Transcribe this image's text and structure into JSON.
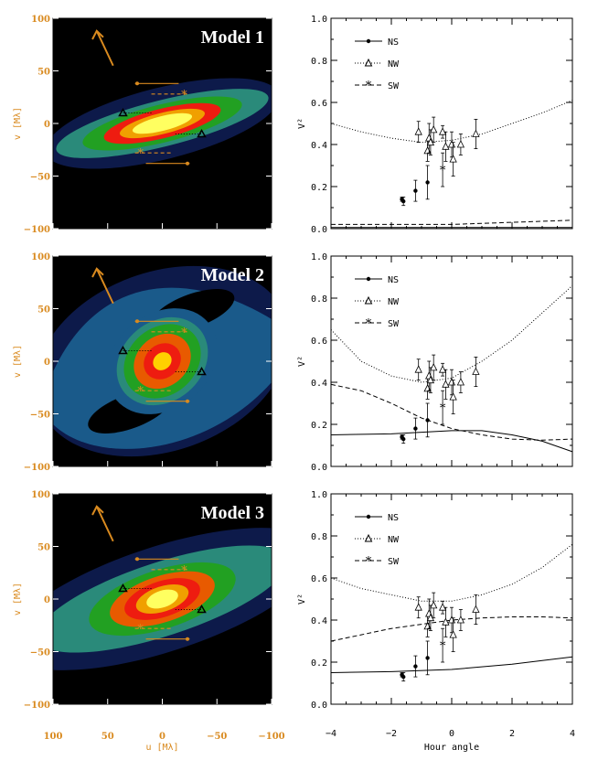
{
  "colors": {
    "uv_axis": "#d98a1f",
    "black": "#000000",
    "contour": [
      "#000000",
      "#0d1a4a",
      "#1a5a8a",
      "#2a8a7a",
      "#22a022",
      "#e85a00",
      "#ee1c10",
      "#f0a000",
      "#ffd000",
      "#ffff60"
    ]
  },
  "uv_axes": {
    "xlabel": "u [Mλ]",
    "ylabel": "v [Mλ]",
    "xticks": [
      "100",
      "50",
      "0",
      "−50",
      "−100"
    ],
    "yticks": [
      "100",
      "50",
      "0",
      "−50",
      "−100"
    ]
  },
  "v2_axes": {
    "xlabel": "Hour angle",
    "ylabel": "V²",
    "xticks": [
      "−4",
      "−2",
      "0",
      "2",
      "4"
    ],
    "yticks": [
      "0.0",
      "0.2",
      "0.4",
      "0.6",
      "0.8",
      "1.0"
    ]
  },
  "legend": [
    {
      "name": "NS",
      "marker": "dot",
      "line": "solid"
    },
    {
      "name": "NW",
      "marker": "triangle",
      "line": "dotted"
    },
    {
      "name": "SW",
      "marker": "asterisk",
      "line": "dashed"
    }
  ],
  "chart_data": [
    {
      "type": "heatmap",
      "title": "Model 1",
      "ellipses": [
        [
          0,
          0,
          110,
          34,
          14
        ],
        [
          0,
          0,
          100,
          22,
          14
        ],
        [
          0,
          0,
          75,
          18,
          14
        ],
        [
          0,
          0,
          55,
          14,
          14
        ],
        [
          0,
          0,
          40,
          10,
          14
        ],
        [
          0,
          0,
          28,
          7,
          14
        ]
      ]
    },
    {
      "type": "heatmap",
      "title": "Model 2",
      "ellipses": [
        [
          0,
          0,
          55,
          45,
          40
        ],
        [
          0,
          0,
          45,
          38,
          40
        ],
        [
          0,
          0,
          38,
          32,
          40
        ],
        [
          0,
          0,
          28,
          24,
          40
        ],
        [
          0,
          0,
          18,
          16,
          40
        ],
        [
          0,
          0,
          9,
          8,
          40
        ]
      ]
    },
    {
      "type": "heatmap",
      "title": "Model 3",
      "ellipses": [
        [
          0,
          0,
          150,
          50,
          18
        ],
        [
          0,
          0,
          120,
          35,
          18
        ],
        [
          0,
          0,
          70,
          28,
          18
        ],
        [
          0,
          0,
          50,
          22,
          18
        ],
        [
          0,
          0,
          36,
          17,
          18
        ],
        [
          0,
          0,
          25,
          12,
          18
        ],
        [
          0,
          0,
          15,
          8,
          18
        ]
      ]
    },
    {
      "type": "scatter",
      "xlim": [
        -4,
        4
      ],
      "ylim": [
        0,
        1
      ],
      "NS": [
        [
          -1.65,
          0.14,
          0.01
        ],
        [
          -1.6,
          0.13,
          0.02
        ],
        [
          -1.2,
          0.18,
          0.05
        ],
        [
          -0.8,
          0.22,
          0.08
        ]
      ],
      "NW": [
        [
          -1.1,
          0.46,
          0.05
        ],
        [
          -0.8,
          0.37,
          0.05
        ],
        [
          -0.75,
          0.43,
          0.07
        ],
        [
          -0.7,
          0.41,
          0.06
        ],
        [
          -0.6,
          0.47,
          0.06
        ],
        [
          -0.3,
          0.46,
          0.03
        ],
        [
          -0.2,
          0.39,
          0.07
        ],
        [
          0.0,
          0.4,
          0.06
        ],
        [
          0.05,
          0.33,
          0.08
        ],
        [
          0.3,
          0.4,
          0.05
        ],
        [
          0.8,
          0.45,
          0.07
        ]
      ],
      "SW": [
        [
          -0.3,
          0.28,
          0.08
        ]
      ],
      "curve_NS": [
        [
          -4,
          0.005
        ],
        [
          0,
          0.005
        ],
        [
          4,
          0.005
        ]
      ],
      "curve_NW": [
        [
          -4,
          0.5
        ],
        [
          -3,
          0.46
        ],
        [
          -2,
          0.43
        ],
        [
          -1,
          0.41
        ],
        [
          0,
          0.42
        ],
        [
          1,
          0.45
        ],
        [
          2,
          0.5
        ],
        [
          3,
          0.55
        ],
        [
          4,
          0.61
        ]
      ],
      "curve_SW": [
        [
          -4,
          0.02
        ],
        [
          0,
          0.02
        ],
        [
          4,
          0.04
        ]
      ]
    },
    {
      "type": "scatter",
      "xlim": [
        -4,
        4
      ],
      "ylim": [
        0,
        1
      ],
      "NS": [
        [
          -1.65,
          0.14,
          0.01
        ],
        [
          -1.6,
          0.13,
          0.02
        ],
        [
          -1.2,
          0.18,
          0.05
        ],
        [
          -0.8,
          0.22,
          0.08
        ]
      ],
      "NW": [
        [
          -1.1,
          0.46,
          0.05
        ],
        [
          -0.8,
          0.37,
          0.05
        ],
        [
          -0.75,
          0.43,
          0.07
        ],
        [
          -0.7,
          0.41,
          0.06
        ],
        [
          -0.6,
          0.47,
          0.06
        ],
        [
          -0.3,
          0.46,
          0.03
        ],
        [
          -0.2,
          0.39,
          0.07
        ],
        [
          0.0,
          0.4,
          0.06
        ],
        [
          0.05,
          0.33,
          0.08
        ],
        [
          0.3,
          0.4,
          0.05
        ],
        [
          0.8,
          0.45,
          0.07
        ]
      ],
      "SW": [
        [
          -0.3,
          0.28,
          0.08
        ]
      ],
      "curve_NS": [
        [
          -4,
          0.15
        ],
        [
          -2,
          0.155
        ],
        [
          0,
          0.17
        ],
        [
          1,
          0.17
        ],
        [
          2,
          0.15
        ],
        [
          3,
          0.12
        ],
        [
          4,
          0.07
        ]
      ],
      "curve_NW": [
        [
          -4,
          0.65
        ],
        [
          -3,
          0.5
        ],
        [
          -2,
          0.43
        ],
        [
          -1,
          0.4
        ],
        [
          0,
          0.42
        ],
        [
          1,
          0.5
        ],
        [
          2,
          0.6
        ],
        [
          3,
          0.73
        ],
        [
          4,
          0.86
        ]
      ],
      "curve_SW": [
        [
          -4,
          0.39
        ],
        [
          -3,
          0.36
        ],
        [
          -2,
          0.3
        ],
        [
          -1,
          0.23
        ],
        [
          0,
          0.18
        ],
        [
          1,
          0.15
        ],
        [
          2,
          0.13
        ],
        [
          3,
          0.125
        ],
        [
          4,
          0.13
        ]
      ]
    },
    {
      "type": "scatter",
      "xlim": [
        -4,
        4
      ],
      "ylim": [
        0,
        1
      ],
      "NS": [
        [
          -1.65,
          0.14,
          0.01
        ],
        [
          -1.6,
          0.13,
          0.02
        ],
        [
          -1.2,
          0.18,
          0.05
        ],
        [
          -0.8,
          0.22,
          0.08
        ]
      ],
      "NW": [
        [
          -1.1,
          0.46,
          0.05
        ],
        [
          -0.8,
          0.37,
          0.05
        ],
        [
          -0.75,
          0.43,
          0.07
        ],
        [
          -0.7,
          0.41,
          0.06
        ],
        [
          -0.6,
          0.47,
          0.06
        ],
        [
          -0.3,
          0.46,
          0.03
        ],
        [
          -0.2,
          0.39,
          0.07
        ],
        [
          0.0,
          0.4,
          0.06
        ],
        [
          0.05,
          0.33,
          0.08
        ],
        [
          0.3,
          0.4,
          0.05
        ],
        [
          0.8,
          0.45,
          0.07
        ]
      ],
      "SW": [
        [
          -0.3,
          0.28,
          0.08
        ]
      ],
      "curve_NS": [
        [
          -4,
          0.15
        ],
        [
          -2,
          0.155
        ],
        [
          0,
          0.165
        ],
        [
          2,
          0.19
        ],
        [
          4,
          0.225
        ]
      ],
      "curve_NW": [
        [
          -4,
          0.6
        ],
        [
          -3,
          0.55
        ],
        [
          -2,
          0.52
        ],
        [
          -1,
          0.49
        ],
        [
          0,
          0.49
        ],
        [
          1,
          0.52
        ],
        [
          2,
          0.57
        ],
        [
          3,
          0.65
        ],
        [
          4,
          0.76
        ]
      ],
      "curve_SW": [
        [
          -4,
          0.3
        ],
        [
          -3,
          0.33
        ],
        [
          -2,
          0.36
        ],
        [
          -1,
          0.38
        ],
        [
          0,
          0.4
        ],
        [
          1,
          0.41
        ],
        [
          2,
          0.415
        ],
        [
          3,
          0.415
        ],
        [
          4,
          0.41
        ]
      ]
    }
  ]
}
